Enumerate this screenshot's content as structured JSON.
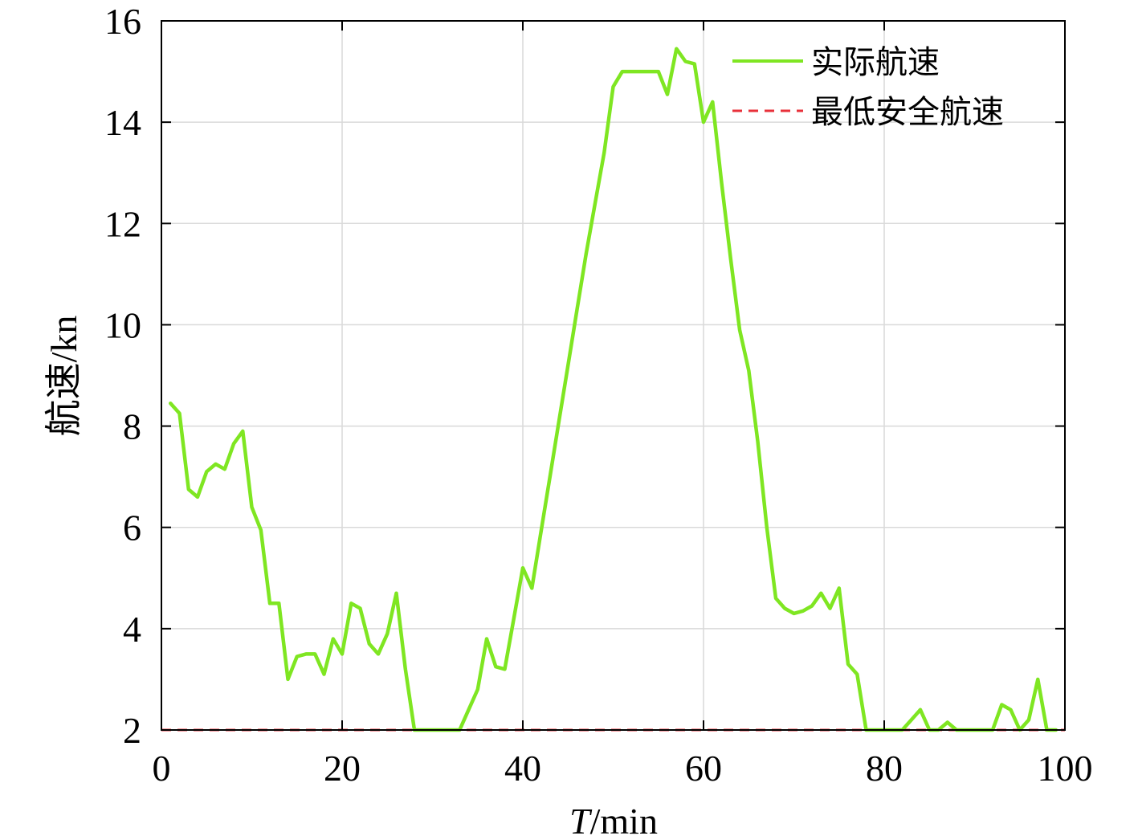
{
  "chart_data": {
    "type": "line",
    "xlabel_italic": "T",
    "xlabel_rest": "/min",
    "ylabel": "航速/kn",
    "xlim": [
      0,
      100
    ],
    "ylim": [
      2,
      16
    ],
    "xticks": [
      0,
      20,
      40,
      60,
      80,
      100
    ],
    "yticks": [
      2,
      4,
      6,
      8,
      10,
      12,
      14,
      16
    ],
    "grid": true,
    "legend_position": "top-right",
    "series": [
      {
        "name": "实际航速",
        "color": "#7fe622",
        "style": "solid",
        "x": [
          1,
          2,
          3,
          4,
          5,
          6,
          7,
          8,
          9,
          10,
          11,
          12,
          13,
          14,
          15,
          16,
          17,
          18,
          19,
          20,
          21,
          22,
          23,
          24,
          25,
          26,
          27,
          28,
          29,
          30,
          31,
          32,
          33,
          34,
          35,
          36,
          37,
          38,
          39,
          40,
          41,
          42,
          43,
          44,
          45,
          46,
          47,
          48,
          49,
          50,
          51,
          52,
          53,
          54,
          55,
          56,
          57,
          58,
          59,
          60,
          61,
          62,
          63,
          64,
          65,
          66,
          67,
          68,
          69,
          70,
          71,
          72,
          73,
          74,
          75,
          76,
          77,
          78,
          79,
          80,
          81,
          82,
          83,
          84,
          85,
          86,
          87,
          88,
          89,
          90,
          91,
          92,
          93,
          94,
          95,
          96,
          97,
          98,
          99
        ],
        "values": [
          8.45,
          8.25,
          6.75,
          6.6,
          7.1,
          7.25,
          7.15,
          7.65,
          7.9,
          6.4,
          5.95,
          4.5,
          4.5,
          3.0,
          3.45,
          3.5,
          3.5,
          3.1,
          3.8,
          3.5,
          4.5,
          4.4,
          3.7,
          3.5,
          3.9,
          4.7,
          3.2,
          2.0,
          2.0,
          2.0,
          2.0,
          2.0,
          2.0,
          2.4,
          2.8,
          3.8,
          3.25,
          3.2,
          4.2,
          5.2,
          4.8,
          5.9,
          7.0,
          8.1,
          9.2,
          10.3,
          11.4,
          12.4,
          13.4,
          14.7,
          15.0,
          15.0,
          15.0,
          15.0,
          15.0,
          14.55,
          15.45,
          15.2,
          15.15,
          14.0,
          14.4,
          12.8,
          11.3,
          9.9,
          9.1,
          7.7,
          6.0,
          4.6,
          4.4,
          4.3,
          4.35,
          4.45,
          4.7,
          4.4,
          4.8,
          3.3,
          3.1,
          2.0,
          2.0,
          2.0,
          2.0,
          2.0,
          2.2,
          2.4,
          2.0,
          2.0,
          2.15,
          2.0,
          2.0,
          2.0,
          2.0,
          2.0,
          2.5,
          2.4,
          2.0,
          2.2,
          3.0,
          2.0,
          2.0
        ]
      },
      {
        "name": "最低安全航速",
        "color": "#e8303a",
        "style": "dashed",
        "x": [
          0,
          100
        ],
        "values": [
          2,
          2
        ]
      }
    ]
  }
}
